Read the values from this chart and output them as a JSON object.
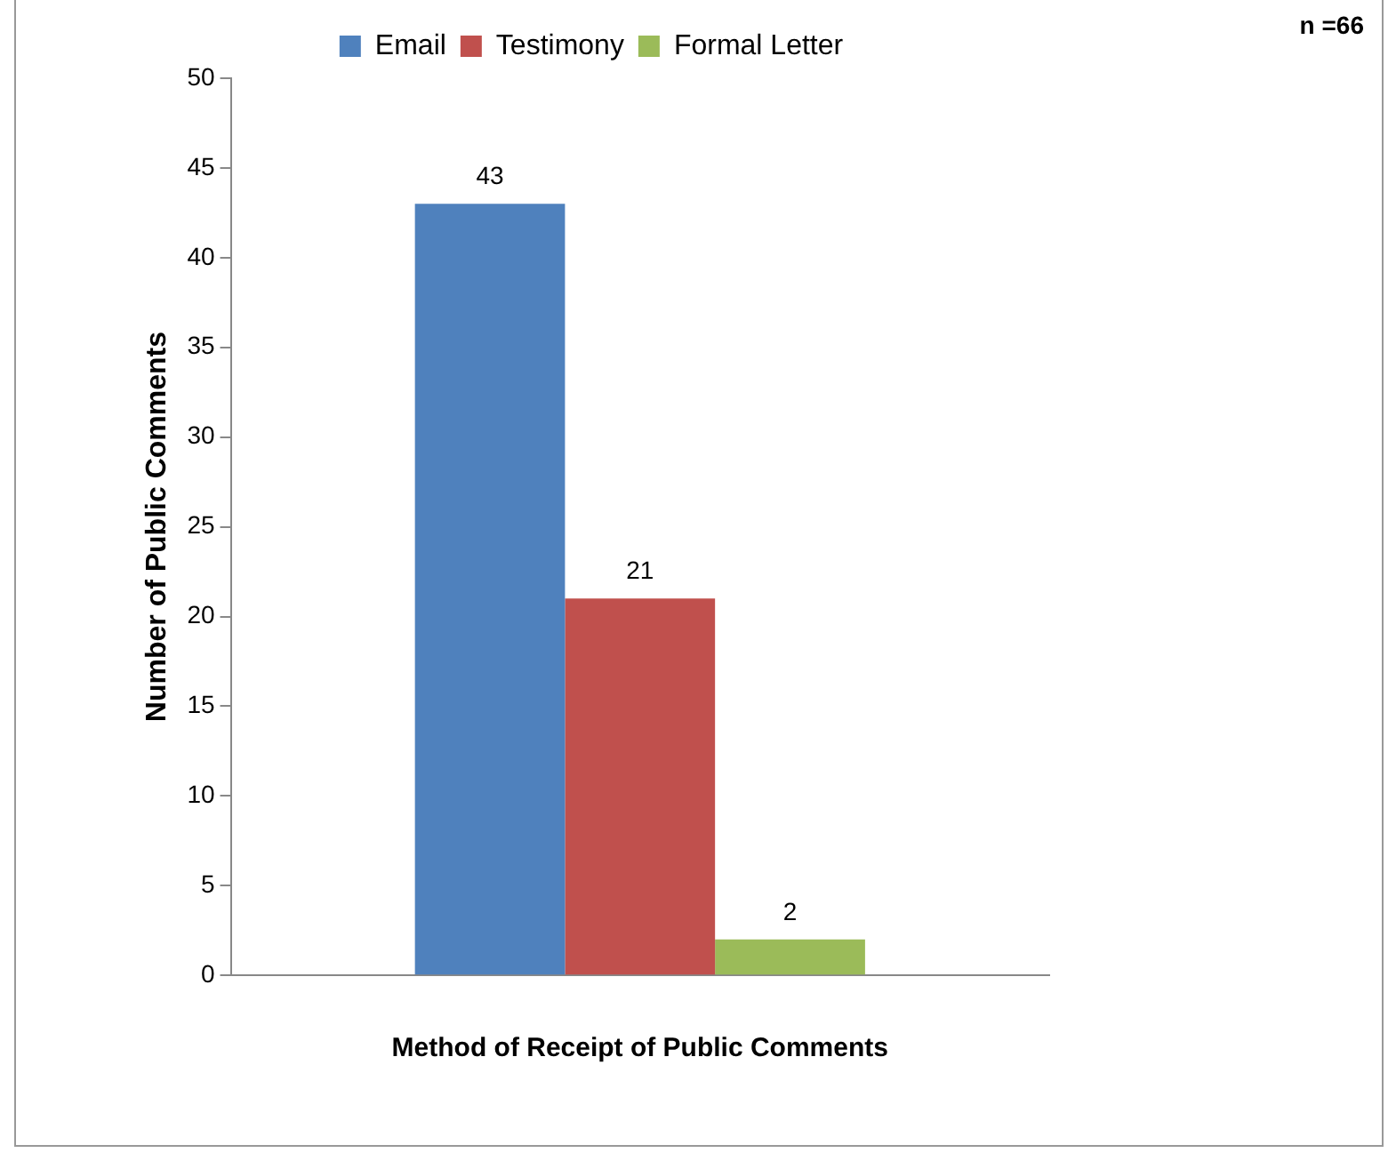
{
  "chart_data": {
    "type": "bar",
    "categories": [
      null
    ],
    "series": [
      {
        "name": "Email",
        "color": "#4f81bd",
        "values": [
          43
        ]
      },
      {
        "name": "Testimony",
        "color": "#c0504d",
        "values": [
          21
        ]
      },
      {
        "name": "Formal Letter",
        "color": "#9bbb59",
        "values": [
          2
        ]
      }
    ],
    "xlabel": "Method of Receipt of Public Comments",
    "ylabel": "Number of Public Comments",
    "ylim": [
      0,
      50
    ],
    "yticks": [
      0,
      5,
      10,
      15,
      20,
      25,
      30,
      35,
      40,
      45,
      50
    ],
    "legend": "top",
    "data_labels": true,
    "annotations": [
      "n =66"
    ]
  }
}
